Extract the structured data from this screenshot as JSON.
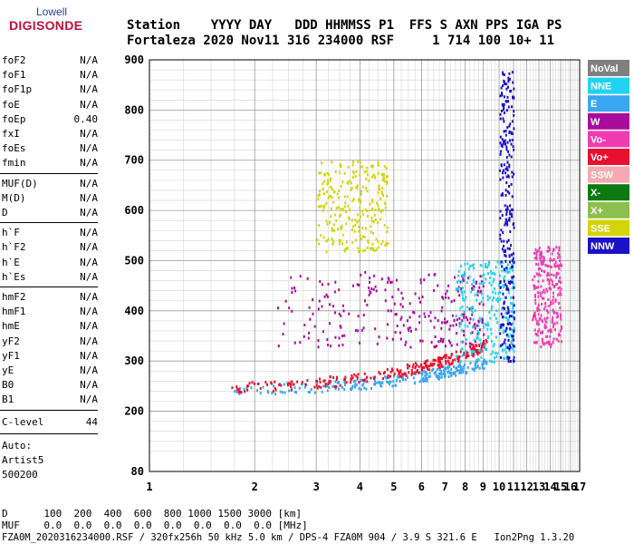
{
  "logo": {
    "line1": "Lowell",
    "line2": "DIGISONDE"
  },
  "header": {
    "row1": "Station    YYYY DAY   DDD HHMMSS P1  FFS S AXN PPS IGA PS",
    "row2": "Fortaleza 2020 Nov11 316 234000 RSF     1 714 100 10+ 11"
  },
  "params_group1": [
    {
      "name": "foF2",
      "value": "N/A"
    },
    {
      "name": "foF1",
      "value": "N/A"
    },
    {
      "name": "foF1p",
      "value": "N/A"
    },
    {
      "name": "foE",
      "value": "N/A"
    },
    {
      "name": "foEp",
      "value": "0.40"
    },
    {
      "name": "fxI",
      "value": "N/A"
    },
    {
      "name": "foEs",
      "value": "N/A"
    },
    {
      "name": "fmin",
      "value": "N/A"
    }
  ],
  "params_group2": [
    {
      "name": "MUF(D)",
      "value": "N/A"
    },
    {
      "name": "M(D)",
      "value": "N/A"
    },
    {
      "name": "D",
      "value": "N/A"
    }
  ],
  "params_group3": [
    {
      "name": "h`F",
      "value": "N/A"
    },
    {
      "name": "h`F2",
      "value": "N/A"
    },
    {
      "name": "h`E",
      "value": "N/A"
    },
    {
      "name": "h`Es",
      "value": "N/A"
    }
  ],
  "params_group4": [
    {
      "name": "hmF2",
      "value": "N/A"
    },
    {
      "name": "hmF1",
      "value": "N/A"
    },
    {
      "name": "hmE",
      "value": "N/A"
    },
    {
      "name": "yF2",
      "value": "N/A"
    },
    {
      "name": "yF1",
      "value": "N/A"
    },
    {
      "name": "yE",
      "value": "N/A"
    },
    {
      "name": "B0",
      "value": "N/A"
    },
    {
      "name": "B1",
      "value": "N/A"
    }
  ],
  "clevel": {
    "name": "C-level",
    "value": "44"
  },
  "autoscale": {
    "line1": "Auto:",
    "line2": "Artist5",
    "line3": "500200"
  },
  "bottom": {
    "d_row": "D      100  200  400  600  800 1000 1500 3000 [km]",
    "muf_row": "MUF    0.0  0.0  0.0  0.0  0.0  0.0  0.0  0.0 [MHz]",
    "footer": "FZA0M_2020316234000.RSF / 320fx256h 50 kHz 5.0 km / DPS-4 FZA0M 904 / 3.9 S 321.6 E   Ion2Png 1.3.20"
  },
  "legend": [
    {
      "label": "NoVal",
      "color": "#808080"
    },
    {
      "label": "NNE",
      "color": "#1fd2f2"
    },
    {
      "label": "E",
      "color": "#3aa6f0"
    },
    {
      "label": "W",
      "color": "#a80c9c"
    },
    {
      "label": "Vo-",
      "color": "#f03cb0"
    },
    {
      "label": "Vo+",
      "color": "#e8102e"
    },
    {
      "label": "SSW",
      "color": "#f4aab0"
    },
    {
      "label": "X-",
      "color": "#0c7a10"
    },
    {
      "label": "X+",
      "color": "#8cc04e"
    },
    {
      "label": "SSE",
      "color": "#d4d40a"
    },
    {
      "label": "NNW",
      "color": "#1c10c8"
    }
  ],
  "chart_data": {
    "type": "scatter",
    "xlim": [
      1,
      17
    ],
    "ylim": [
      80,
      900
    ],
    "x_ticks": [
      1,
      2,
      3,
      4,
      5,
      6,
      7,
      8,
      9,
      10,
      11,
      12,
      13,
      14,
      15,
      16,
      17
    ],
    "y_ticks": [
      80,
      200,
      300,
      400,
      500,
      600,
      700,
      800,
      900
    ],
    "x_scale": "log",
    "y_scale": "linear",
    "grid": true,
    "legend_position": "right",
    "xlabel": "",
    "ylabel": "",
    "trace_groups": [
      {
        "name": "E",
        "x_range": [
          1.7,
          9.2
        ],
        "y_start": 245,
        "y_end": 300,
        "rgb": "#3aa6f0"
      },
      {
        "name": "Vo+",
        "x_range": [
          1.7,
          9.2
        ],
        "y_start": 250,
        "y_end": 335,
        "rgb": "#e8102e"
      },
      {
        "name": "W",
        "x_range": [
          2.3,
          9.0
        ],
        "y_min": 330,
        "y_max": 480,
        "rgb": "#a80c9c"
      },
      {
        "name": "SSE",
        "x_range": [
          3.0,
          4.8
        ],
        "y_min": 520,
        "y_max": 700,
        "rgb": "#d4d40a"
      },
      {
        "name": "NNE",
        "x_range": [
          7.5,
          11.0
        ],
        "y_min": 300,
        "y_max": 500,
        "rgb": "#1fd2f2"
      },
      {
        "name": "NNW",
        "x_range": [
          10.0,
          11.0
        ],
        "y_min": 300,
        "y_max": 880,
        "rgb": "#1c10c8"
      },
      {
        "name": "Vo-",
        "x_range": [
          12.4,
          15.0
        ],
        "y_min": 330,
        "y_max": 530,
        "rgb": "#f03cb0"
      }
    ]
  }
}
